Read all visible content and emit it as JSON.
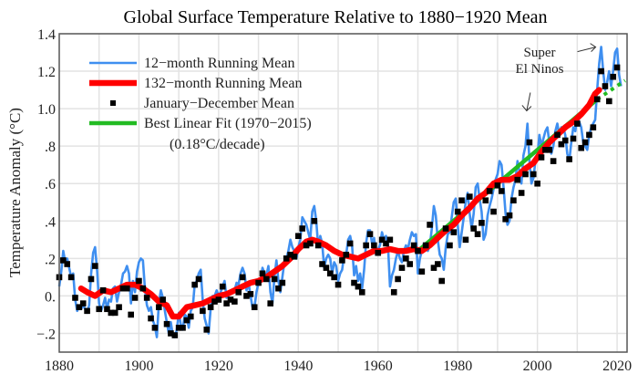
{
  "chart_data": {
    "type": "line",
    "title": "Global Surface Temperature Relative to 1880−1920 Mean",
    "xlabel": "",
    "ylabel": "Temperature Anomaly (°C)",
    "xlim": [
      1880,
      2022.5
    ],
    "ylim": [
      -0.3,
      1.4
    ],
    "grid": true,
    "x_ticks": [
      1880,
      1900,
      1920,
      1940,
      1960,
      1980,
      2000,
      2020
    ],
    "x_tick_labels": [
      "1880",
      "1900",
      "1920",
      "1940",
      "1960",
      "1980",
      "2000",
      "2020"
    ],
    "x_minor_grid": [
      1890,
      1910,
      1930,
      1950,
      1970,
      1990,
      2010
    ],
    "y_ticks": [
      -0.2,
      0.0,
      0.2,
      0.4,
      0.6,
      0.8,
      1.0,
      1.2,
      1.4
    ],
    "y_tick_labels": [
      "−.2",
      "0.",
      ".2",
      ".4",
      ".6",
      ".8",
      "1.0",
      "1.2",
      "1.4"
    ],
    "legend_position": "top-left",
    "series": [
      {
        "name": "12−month Running Mean",
        "kind": "line",
        "color": "#3f8ff0",
        "x": [
          1880.0,
          1880.5,
          1881.0,
          1881.5,
          1882.0,
          1882.5,
          1883.0,
          1883.5,
          1884.0,
          1884.5,
          1885.0,
          1885.5,
          1886.0,
          1886.5,
          1887.0,
          1887.5,
          1888.0,
          1888.5,
          1889.0,
          1889.5,
          1890.0,
          1890.5,
          1891.0,
          1891.5,
          1892.0,
          1892.5,
          1893.0,
          1893.5,
          1894.0,
          1894.5,
          1895.0,
          1895.5,
          1896.0,
          1896.5,
          1897.0,
          1897.5,
          1898.0,
          1898.5,
          1899.0,
          1899.5,
          1900.0,
          1900.5,
          1901.0,
          1901.5,
          1902.0,
          1902.5,
          1903.0,
          1903.5,
          1904.0,
          1904.5,
          1905.0,
          1905.5,
          1906.0,
          1906.5,
          1907.0,
          1907.5,
          1908.0,
          1908.5,
          1909.0,
          1909.5,
          1910.0,
          1910.5,
          1911.0,
          1911.5,
          1912.0,
          1912.5,
          1913.0,
          1913.5,
          1914.0,
          1914.5,
          1915.0,
          1915.5,
          1916.0,
          1916.5,
          1917.0,
          1917.5,
          1918.0,
          1918.5,
          1919.0,
          1919.5,
          1920.0,
          1920.5,
          1921.0,
          1921.5,
          1922.0,
          1922.5,
          1923.0,
          1923.5,
          1924.0,
          1924.5,
          1925.0,
          1925.5,
          1926.0,
          1926.5,
          1927.0,
          1927.5,
          1928.0,
          1928.5,
          1929.0,
          1929.5,
          1930.0,
          1930.5,
          1931.0,
          1931.5,
          1932.0,
          1932.5,
          1933.0,
          1933.5,
          1934.0,
          1934.5,
          1935.0,
          1935.5,
          1936.0,
          1936.5,
          1937.0,
          1937.5,
          1938.0,
          1938.5,
          1939.0,
          1939.5,
          1940.0,
          1940.5,
          1941.0,
          1941.5,
          1942.0,
          1942.5,
          1943.0,
          1943.5,
          1944.0,
          1944.5,
          1945.0,
          1945.5,
          1946.0,
          1946.5,
          1947.0,
          1947.5,
          1948.0,
          1948.5,
          1949.0,
          1949.5,
          1950.0,
          1950.5,
          1951.0,
          1951.5,
          1952.0,
          1952.5,
          1953.0,
          1953.5,
          1954.0,
          1954.5,
          1955.0,
          1955.5,
          1956.0,
          1956.5,
          1957.0,
          1957.5,
          1958.0,
          1958.5,
          1959.0,
          1959.5,
          1960.0,
          1960.5,
          1961.0,
          1961.5,
          1962.0,
          1962.5,
          1963.0,
          1963.5,
          1964.0,
          1964.5,
          1965.0,
          1965.5,
          1966.0,
          1966.5,
          1967.0,
          1967.5,
          1968.0,
          1968.5,
          1969.0,
          1969.5,
          1970.0,
          1970.5,
          1971.0,
          1971.5,
          1972.0,
          1972.5,
          1973.0,
          1973.5,
          1974.0,
          1974.5,
          1975.0,
          1975.5,
          1976.0,
          1976.5,
          1977.0,
          1977.5,
          1978.0,
          1978.5,
          1979.0,
          1979.5,
          1980.0,
          1980.5,
          1981.0,
          1981.5,
          1982.0,
          1982.5,
          1983.0,
          1983.5,
          1984.0,
          1984.5,
          1985.0,
          1985.5,
          1986.0,
          1986.5,
          1987.0,
          1987.5,
          1988.0,
          1988.5,
          1989.0,
          1989.5,
          1990.0,
          1990.5,
          1991.0,
          1991.5,
          1992.0,
          1992.5,
          1993.0,
          1993.5,
          1994.0,
          1994.5,
          1995.0,
          1995.5,
          1996.0,
          1996.5,
          1997.0,
          1997.5,
          1998.0,
          1998.5,
          1999.0,
          1999.5,
          2000.0,
          2000.5,
          2001.0,
          2001.5,
          2002.0,
          2002.5,
          2003.0,
          2003.5,
          2004.0,
          2004.5,
          2005.0,
          2005.5,
          2006.0,
          2006.5,
          2007.0,
          2007.5,
          2008.0,
          2008.5,
          2009.0,
          2009.5,
          2010.0,
          2010.5,
          2011.0,
          2011.5,
          2012.0,
          2012.5,
          2013.0,
          2013.5,
          2014.0,
          2014.5,
          2015.0,
          2015.5,
          2016.0,
          2016.5,
          2017.0,
          2017.5,
          2018.0,
          2018.5,
          2019.0,
          2019.5,
          2020.0,
          2020.5,
          2021.0
        ],
        "y": [
          0.05,
          0.13,
          0.24,
          0.18,
          0.2,
          0.15,
          0.1,
          0.12,
          -0.02,
          -0.08,
          -0.05,
          -0.07,
          -0.05,
          -0.07,
          -0.09,
          -0.05,
          0.12,
          0.23,
          0.26,
          0.14,
          -0.04,
          -0.08,
          -0.05,
          -0.01,
          -0.07,
          -0.02,
          -0.03,
          0.04,
          0.05,
          -0.03,
          0.02,
          0.06,
          0.12,
          0.13,
          0.16,
          0.12,
          -0.04,
          0.08,
          0.02,
          0.13,
          0.18,
          0.2,
          0.19,
          0.04,
          -0.05,
          -0.08,
          -0.06,
          -0.13,
          -0.16,
          -0.22,
          -0.04,
          0.03,
          -0.01,
          -0.08,
          -0.14,
          -0.2,
          -0.14,
          -0.21,
          -0.22,
          -0.18,
          -0.09,
          -0.15,
          -0.18,
          -0.1,
          -0.11,
          -0.17,
          -0.08,
          -0.06,
          0.06,
          0.08,
          0.12,
          0.14,
          -0.02,
          -0.12,
          -0.16,
          -0.2,
          -0.07,
          0.0,
          0.0,
          0.03,
          0.0,
          0.02,
          0.05,
          0.08,
          -0.01,
          0.0,
          0.03,
          0.03,
          0.03,
          0.07,
          0.06,
          0.12,
          0.15,
          0.12,
          0.03,
          0.07,
          0.0,
          -0.06,
          -0.06,
          0.02,
          0.07,
          0.08,
          0.15,
          0.12,
          0.11,
          0.16,
          0.02,
          -0.04,
          0.1,
          0.19,
          0.08,
          0.02,
          0.1,
          0.18,
          0.2,
          0.24,
          0.3,
          0.26,
          0.24,
          0.2,
          0.26,
          0.3,
          0.42,
          0.4,
          0.38,
          0.34,
          0.3,
          0.45,
          0.48,
          0.4,
          0.26,
          0.32,
          0.28,
          0.15,
          0.2,
          0.22,
          0.2,
          0.12,
          0.18,
          0.16,
          0.08,
          0.12,
          0.14,
          0.22,
          0.22,
          0.3,
          0.32,
          0.27,
          0.11,
          0.16,
          0.08,
          0.12,
          0.04,
          0.14,
          0.28,
          0.35,
          0.35,
          0.28,
          0.31,
          0.22,
          0.25,
          0.27,
          0.34,
          0.3,
          0.32,
          0.27,
          0.05,
          0.11,
          0.14,
          0.2,
          0.24,
          0.2,
          0.18,
          0.24,
          0.27,
          0.25,
          0.3,
          0.34,
          0.32,
          0.33,
          0.12,
          0.2,
          0.24,
          0.28,
          0.28,
          0.24,
          0.27,
          0.36,
          0.48,
          0.43,
          0.3,
          0.22,
          0.2,
          0.14,
          0.26,
          0.33,
          0.34,
          0.42,
          0.5,
          0.52,
          0.38,
          0.26,
          0.34,
          0.42,
          0.5,
          0.55,
          0.44,
          0.36,
          0.44,
          0.58,
          0.6,
          0.52,
          0.45,
          0.3,
          0.33,
          0.43,
          0.48,
          0.52,
          0.57,
          0.62,
          0.65,
          0.72,
          0.7,
          0.58,
          0.44,
          0.38,
          0.4,
          0.52,
          0.58,
          0.62,
          0.72,
          0.66,
          0.6,
          0.75,
          0.8,
          0.92,
          0.72,
          0.6,
          0.63,
          0.72,
          0.74,
          0.86,
          0.8,
          0.84,
          0.88,
          0.9,
          0.82,
          0.76,
          0.8,
          0.88,
          0.92,
          0.86,
          0.9,
          0.9,
          0.86,
          0.76,
          0.72,
          0.82,
          0.9,
          0.88,
          0.96,
          0.93,
          0.9,
          0.82,
          0.8,
          0.78,
          0.86,
          0.9,
          0.92,
          0.94,
          1.1,
          1.24,
          1.33,
          1.2,
          1.1,
          1.14,
          1.2,
          1.12,
          1.2,
          1.3,
          1.32,
          1.18,
          1.12
        ]
      },
      {
        "name": "132−month Running Mean",
        "kind": "line",
        "color": "#ff0000",
        "x": [
          1885.5,
          1887,
          1889,
          1891,
          1893,
          1895,
          1897,
          1899,
          1901,
          1903,
          1905,
          1907,
          1908.5,
          1910,
          1912,
          1914,
          1916,
          1918,
          1920,
          1922,
          1924,
          1926,
          1928,
          1930,
          1932,
          1934,
          1936,
          1938,
          1940,
          1942,
          1943.5,
          1945,
          1947,
          1949,
          1951,
          1953,
          1955,
          1957,
          1959,
          1961,
          1963,
          1965,
          1967,
          1969,
          1971,
          1973,
          1975,
          1977,
          1979,
          1981,
          1983,
          1985,
          1987,
          1989,
          1991,
          1993,
          1995,
          1997,
          1999,
          2001,
          2003,
          2005,
          2007,
          2009,
          2011,
          2013,
          2014.5,
          2015.5
        ],
        "y": [
          0.04,
          0.02,
          0.0,
          0.03,
          0.02,
          0.04,
          0.06,
          0.06,
          0.04,
          0.01,
          -0.03,
          -0.05,
          -0.11,
          -0.11,
          -0.06,
          -0.05,
          -0.04,
          -0.02,
          0.0,
          0.01,
          0.03,
          0.05,
          0.07,
          0.08,
          0.1,
          0.13,
          0.16,
          0.2,
          0.25,
          0.29,
          0.3,
          0.29,
          0.27,
          0.24,
          0.22,
          0.21,
          0.2,
          0.22,
          0.24,
          0.24,
          0.25,
          0.24,
          0.24,
          0.25,
          0.24,
          0.27,
          0.31,
          0.35,
          0.38,
          0.43,
          0.47,
          0.52,
          0.55,
          0.6,
          0.62,
          0.62,
          0.64,
          0.68,
          0.71,
          0.77,
          0.82,
          0.86,
          0.9,
          0.93,
          0.97,
          1.02,
          1.08,
          1.1
        ]
      },
      {
        "name": "January−December Mean",
        "kind": "scatter",
        "color": "#000000",
        "x": [
          1880,
          1881,
          1882,
          1883,
          1884,
          1885,
          1886,
          1887,
          1888,
          1889,
          1890,
          1891,
          1892,
          1893,
          1894,
          1895,
          1896,
          1897,
          1898,
          1899,
          1900,
          1901,
          1902,
          1903,
          1904,
          1905,
          1906,
          1907,
          1908,
          1909,
          1910,
          1911,
          1912,
          1913,
          1914,
          1915,
          1916,
          1917,
          1918,
          1919,
          1920,
          1921,
          1922,
          1923,
          1924,
          1925,
          1926,
          1927,
          1928,
          1929,
          1930,
          1931,
          1932,
          1933,
          1934,
          1935,
          1936,
          1937,
          1938,
          1939,
          1940,
          1941,
          1942,
          1943,
          1944,
          1945,
          1946,
          1947,
          1948,
          1949,
          1950,
          1951,
          1952,
          1953,
          1954,
          1955,
          1956,
          1957,
          1958,
          1959,
          1960,
          1961,
          1962,
          1963,
          1964,
          1965,
          1966,
          1967,
          1968,
          1969,
          1970,
          1971,
          1972,
          1973,
          1974,
          1975,
          1976,
          1977,
          1978,
          1979,
          1980,
          1981,
          1982,
          1983,
          1984,
          1985,
          1986,
          1987,
          1988,
          1989,
          1990,
          1991,
          1992,
          1993,
          1994,
          1995,
          1996,
          1997,
          1998,
          1999,
          2000,
          2001,
          2002,
          2003,
          2004,
          2005,
          2006,
          2007,
          2008,
          2009,
          2010,
          2011,
          2012,
          2013,
          2014,
          2015,
          2016,
          2017,
          2018,
          2019,
          2020
        ],
        "y": [
          0.1,
          0.19,
          0.17,
          0.1,
          -0.01,
          -0.06,
          -0.04,
          -0.08,
          0.09,
          0.16,
          -0.07,
          0.03,
          -0.07,
          -0.09,
          -0.09,
          -0.06,
          0.04,
          0.04,
          -0.1,
          -0.01,
          0.08,
          0.04,
          -0.01,
          -0.12,
          -0.17,
          -0.06,
          -0.02,
          -0.15,
          -0.2,
          -0.21,
          -0.17,
          -0.17,
          -0.13,
          -0.11,
          0.06,
          0.09,
          -0.08,
          -0.18,
          -0.06,
          -0.03,
          -0.02,
          0.05,
          -0.04,
          -0.02,
          -0.03,
          0.02,
          0.1,
          0.0,
          0.01,
          -0.06,
          0.07,
          0.12,
          0.09,
          -0.04,
          0.09,
          0.04,
          0.07,
          0.2,
          0.22,
          0.21,
          0.32,
          0.36,
          0.27,
          0.28,
          0.4,
          0.27,
          0.17,
          0.15,
          0.12,
          0.1,
          0.06,
          0.19,
          0.22,
          0.28,
          0.07,
          0.05,
          0.02,
          0.27,
          0.33,
          0.27,
          0.23,
          0.3,
          0.28,
          0.3,
          0.02,
          0.09,
          0.15,
          0.2,
          0.17,
          0.27,
          0.24,
          0.13,
          0.27,
          0.38,
          0.15,
          0.17,
          0.08,
          0.36,
          0.27,
          0.34,
          0.45,
          0.51,
          0.3,
          0.53,
          0.36,
          0.33,
          0.39,
          0.51,
          0.56,
          0.45,
          0.59,
          0.56,
          0.41,
          0.43,
          0.51,
          0.62,
          0.55,
          0.65,
          0.82,
          0.65,
          0.6,
          0.74,
          0.78,
          0.78,
          0.72,
          0.86,
          0.81,
          0.83,
          0.73,
          0.84,
          0.92,
          0.79,
          0.82,
          0.86,
          0.9,
          1.05,
          1.2,
          1.12,
          1.04,
          1.17,
          1.22
        ]
      },
      {
        "name": "Best Linear Fit (1970−2015)",
        "kind": "line",
        "color": "#22bb22",
        "x": [
          1970,
          2015
        ],
        "y": [
          0.24,
          1.05
        ],
        "extrapolated": {
          "x": [
            2015,
            2022
          ],
          "y": [
            1.05,
            1.15
          ],
          "style": "dotted"
        }
      }
    ],
    "legend_note": "(0.18°C/decade)",
    "annotations": [
      {
        "text_lines": [
          "Super",
          "El Ninos"
        ],
        "arrows_to": [
          [
            1998,
            0.93
          ],
          [
            2016,
            1.28
          ]
        ]
      }
    ]
  }
}
